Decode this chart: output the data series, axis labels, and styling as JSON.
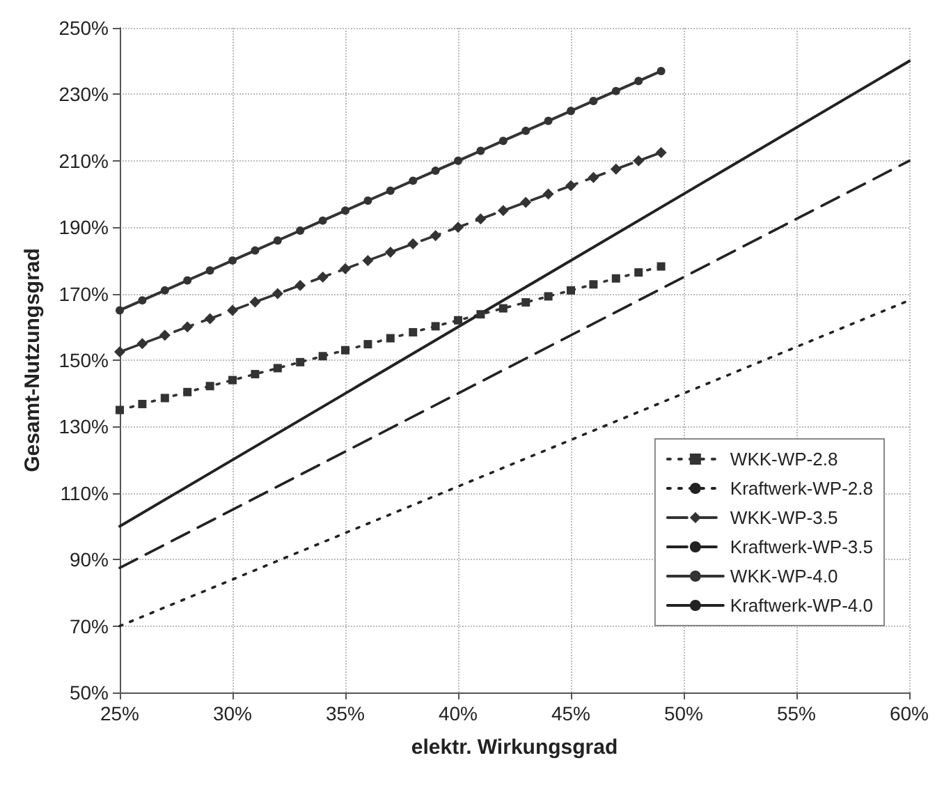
{
  "chart_data": {
    "type": "line",
    "xlabel": "elektr. Wirkungsgrad",
    "ylabel": "Gesamt-Nutzungsgrad",
    "xlim": [
      25,
      60
    ],
    "ylim": [
      50,
      250
    ],
    "xticks": [
      {
        "value": 25,
        "label": "25%"
      },
      {
        "value": 30,
        "label": "30%"
      },
      {
        "value": 35,
        "label": "35%"
      },
      {
        "value": 40,
        "label": "40%"
      },
      {
        "value": 45,
        "label": "45%"
      },
      {
        "value": 50,
        "label": "50%"
      },
      {
        "value": 55,
        "label": "55%"
      },
      {
        "value": 60,
        "label": "60%"
      }
    ],
    "yticks": [
      {
        "value": 50,
        "label": "50%"
      },
      {
        "value": 70,
        "label": "70%"
      },
      {
        "value": 90,
        "label": "90%"
      },
      {
        "value": 110,
        "label": "110%"
      },
      {
        "value": 130,
        "label": "130%"
      },
      {
        "value": 150,
        "label": "150%"
      },
      {
        "value": 170,
        "label": "170%"
      },
      {
        "value": 190,
        "label": "190%"
      },
      {
        "value": 210,
        "label": "210%"
      },
      {
        "value": 230,
        "label": "230%"
      },
      {
        "value": 250,
        "label": "250%"
      }
    ],
    "grid": true,
    "legend": "bottom right",
    "series": [
      {
        "name": "WKK-WP-2.8",
        "color": "#333333",
        "marker": "square",
        "line_style": "dotted",
        "x": [
          25,
          26,
          27,
          28,
          29,
          30,
          31,
          32,
          33,
          34,
          35,
          36,
          37,
          38,
          39,
          40,
          41,
          42,
          43,
          44,
          45,
          46,
          47,
          48,
          49
        ],
        "values": [
          135,
          136.8,
          138.6,
          140.4,
          142.2,
          144,
          145.8,
          147.6,
          149.4,
          151.2,
          153,
          154.8,
          156.6,
          158.4,
          160.2,
          162,
          163.8,
          165.6,
          167.4,
          169.2,
          171,
          172.8,
          174.6,
          176.4,
          178.2
        ]
      },
      {
        "name": "Kraftwerk-WP-2.8",
        "color": "#222222",
        "marker": "none",
        "line_style": "dotted",
        "x": [
          25,
          60
        ],
        "values": [
          70,
          168
        ]
      },
      {
        "name": "WKK-WP-3.5",
        "color": "#333333",
        "marker": "diamond",
        "line_style": "dashed",
        "x": [
          25,
          26,
          27,
          28,
          29,
          30,
          31,
          32,
          33,
          34,
          35,
          36,
          37,
          38,
          39,
          40,
          41,
          42,
          43,
          44,
          45,
          46,
          47,
          48,
          49
        ],
        "values": [
          152.5,
          155,
          157.5,
          160,
          162.5,
          165,
          167.5,
          170,
          172.5,
          175,
          177.5,
          180,
          182.5,
          185,
          187.5,
          190,
          192.5,
          195,
          197.5,
          200,
          202.5,
          205,
          207.5,
          210,
          212.5
        ]
      },
      {
        "name": "Kraftwerk-WP-3.5",
        "color": "#222222",
        "marker": "none",
        "line_style": "dashed",
        "x": [
          25,
          60
        ],
        "values": [
          87.5,
          210
        ]
      },
      {
        "name": "WKK-WP-4.0",
        "color": "#333333",
        "marker": "circle",
        "line_style": "solid",
        "x": [
          25,
          26,
          27,
          28,
          29,
          30,
          31,
          32,
          33,
          34,
          35,
          36,
          37,
          38,
          39,
          40,
          41,
          42,
          43,
          44,
          45,
          46,
          47,
          48,
          49
        ],
        "values": [
          165,
          168,
          171,
          174,
          177,
          180,
          183,
          186,
          189,
          192,
          195,
          198,
          201,
          204,
          207,
          210,
          213,
          216,
          219,
          222,
          225,
          228,
          231,
          234,
          237
        ]
      },
      {
        "name": "Kraftwerk-WP-4.0",
        "color": "#222222",
        "marker": "none",
        "line_style": "solid",
        "x": [
          25,
          60
        ],
        "values": [
          100,
          240
        ]
      }
    ]
  }
}
